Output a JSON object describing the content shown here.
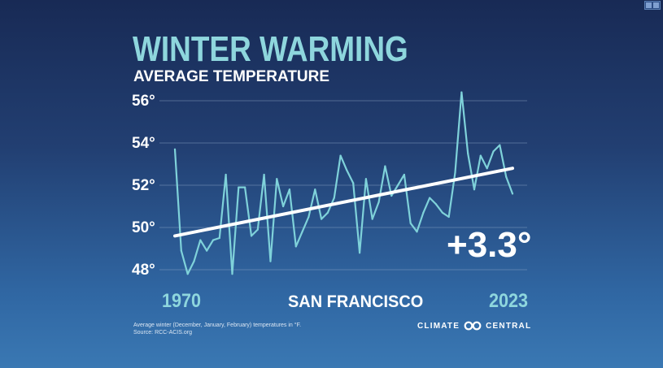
{
  "title": "WINTER WARMING",
  "subtitle": "AVERAGE TEMPERATURE",
  "location": "SAN FRANCISCO",
  "change_label": "+3.3°",
  "footnote": {
    "line1": "Average winter (December, January, February) temperatures in °F.",
    "line2": "Source: RCC-ACIS.org"
  },
  "brand": {
    "left": "CLIMATE",
    "right": "CENTRAL",
    "logo_icon": "linked-rings-icon"
  },
  "colors": {
    "series": "#7fd2da",
    "trend": "#ffffff",
    "title": "#8ed6dd",
    "grid": "#8fa9c9"
  },
  "chart_data": {
    "type": "line",
    "title": "WINTER WARMING",
    "subtitle": "AVERAGE TEMPERATURE",
    "xlabel": "",
    "ylabel": "",
    "x_start_label": "1970",
    "x_end_label": "2023",
    "ylim": [
      47.5,
      56.5
    ],
    "yticks": [
      48,
      50,
      52,
      54,
      56
    ],
    "ytick_labels": [
      "48°",
      "50°",
      "52°",
      "54°",
      "56°"
    ],
    "grid": true,
    "series": [
      {
        "name": "Average winter temperature",
        "x": [
          1970,
          1971,
          1972,
          1973,
          1974,
          1975,
          1976,
          1977,
          1978,
          1979,
          1980,
          1981,
          1982,
          1983,
          1984,
          1985,
          1986,
          1987,
          1988,
          1989,
          1990,
          1991,
          1992,
          1993,
          1994,
          1995,
          1996,
          1997,
          1998,
          1999,
          2000,
          2001,
          2002,
          2003,
          2004,
          2005,
          2006,
          2007,
          2008,
          2009,
          2010,
          2011,
          2012,
          2013,
          2014,
          2015,
          2016,
          2017,
          2018,
          2019,
          2020,
          2021,
          2022,
          2023
        ],
        "values": [
          53.7,
          48.9,
          47.8,
          48.4,
          49.4,
          48.9,
          49.4,
          49.5,
          52.5,
          47.8,
          51.9,
          51.9,
          49.6,
          49.9,
          52.5,
          48.4,
          52.3,
          51.0,
          51.8,
          49.1,
          49.8,
          50.5,
          51.8,
          50.4,
          50.7,
          51.4,
          53.4,
          52.7,
          52.1,
          48.8,
          52.3,
          50.4,
          51.2,
          52.9,
          51.5,
          52.0,
          52.5,
          50.2,
          49.8,
          50.7,
          51.4,
          51.1,
          50.7,
          50.5,
          52.6,
          56.4,
          53.5,
          51.8,
          53.4,
          52.8,
          53.6,
          53.9,
          52.4,
          51.6
        ]
      }
    ],
    "trend": {
      "name": "Linear trend",
      "start": 49.6,
      "end": 52.8,
      "change": 3.3
    }
  }
}
